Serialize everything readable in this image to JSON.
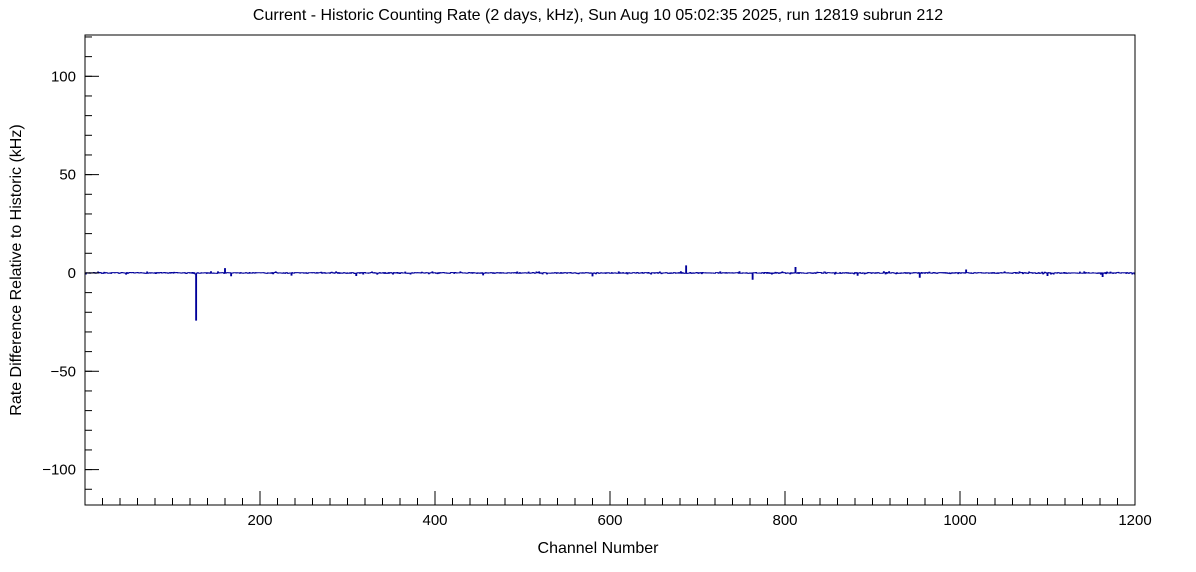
{
  "chart_data": {
    "type": "line",
    "title": "Current - Historic Counting Rate (2 days, kHz), Sun Aug 10 05:02:35 2025, run 12819 subrun 212",
    "xlabel": "Channel Number",
    "ylabel": "Rate Difference Relative to Historic (kHz)",
    "xlim": [
      0,
      1200
    ],
    "ylim": [
      -118,
      121
    ],
    "x_major_ticks": [
      200,
      400,
      600,
      800,
      1000,
      1200
    ],
    "x_minor_step": 20,
    "y_major_ticks": [
      -100,
      -50,
      0,
      50,
      100
    ],
    "y_minor_step": 10,
    "grid": false,
    "legend": false,
    "line_color": "#00009a",
    "baseline": 0,
    "n_channels": 1200,
    "noise_amplitude": 0.6,
    "noise_seed": 7,
    "spikes": [
      {
        "channel": 127,
        "value": -24
      },
      {
        "channel": 160,
        "value": 2.2
      },
      {
        "channel": 167,
        "value": -1.4
      },
      {
        "channel": 236,
        "value": -1.1
      },
      {
        "channel": 310,
        "value": -1.3
      },
      {
        "channel": 455,
        "value": -1.0
      },
      {
        "channel": 580,
        "value": -1.5
      },
      {
        "channel": 687,
        "value": 3.6
      },
      {
        "channel": 763,
        "value": -3.2
      },
      {
        "channel": 812,
        "value": 2.8
      },
      {
        "channel": 883,
        "value": -1.2
      },
      {
        "channel": 954,
        "value": -2.2
      },
      {
        "channel": 1007,
        "value": 1.5
      },
      {
        "channel": 1100,
        "value": -1.3
      },
      {
        "channel": 1163,
        "value": -1.8
      }
    ]
  }
}
